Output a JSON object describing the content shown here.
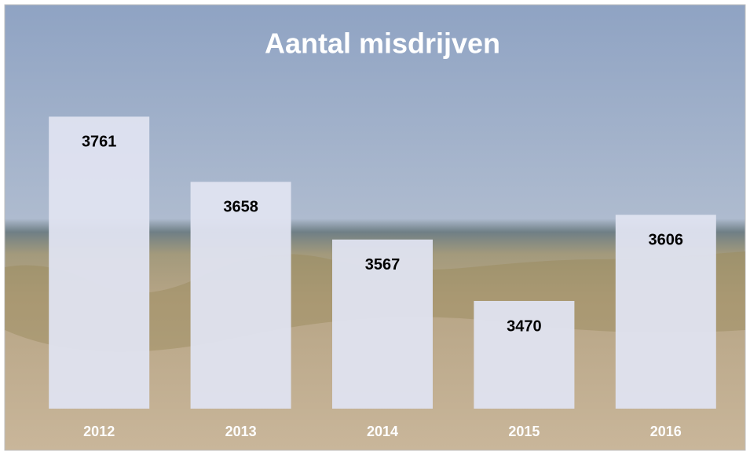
{
  "chart_data": {
    "type": "bar",
    "title": "Aantal misdrijven",
    "categories": [
      "2012",
      "2013",
      "2014",
      "2015",
      "2016"
    ],
    "values": [
      3761,
      3658,
      3567,
      3470,
      3606
    ],
    "color": "#dfe3f0",
    "ylim": [
      3300,
      3800
    ]
  }
}
